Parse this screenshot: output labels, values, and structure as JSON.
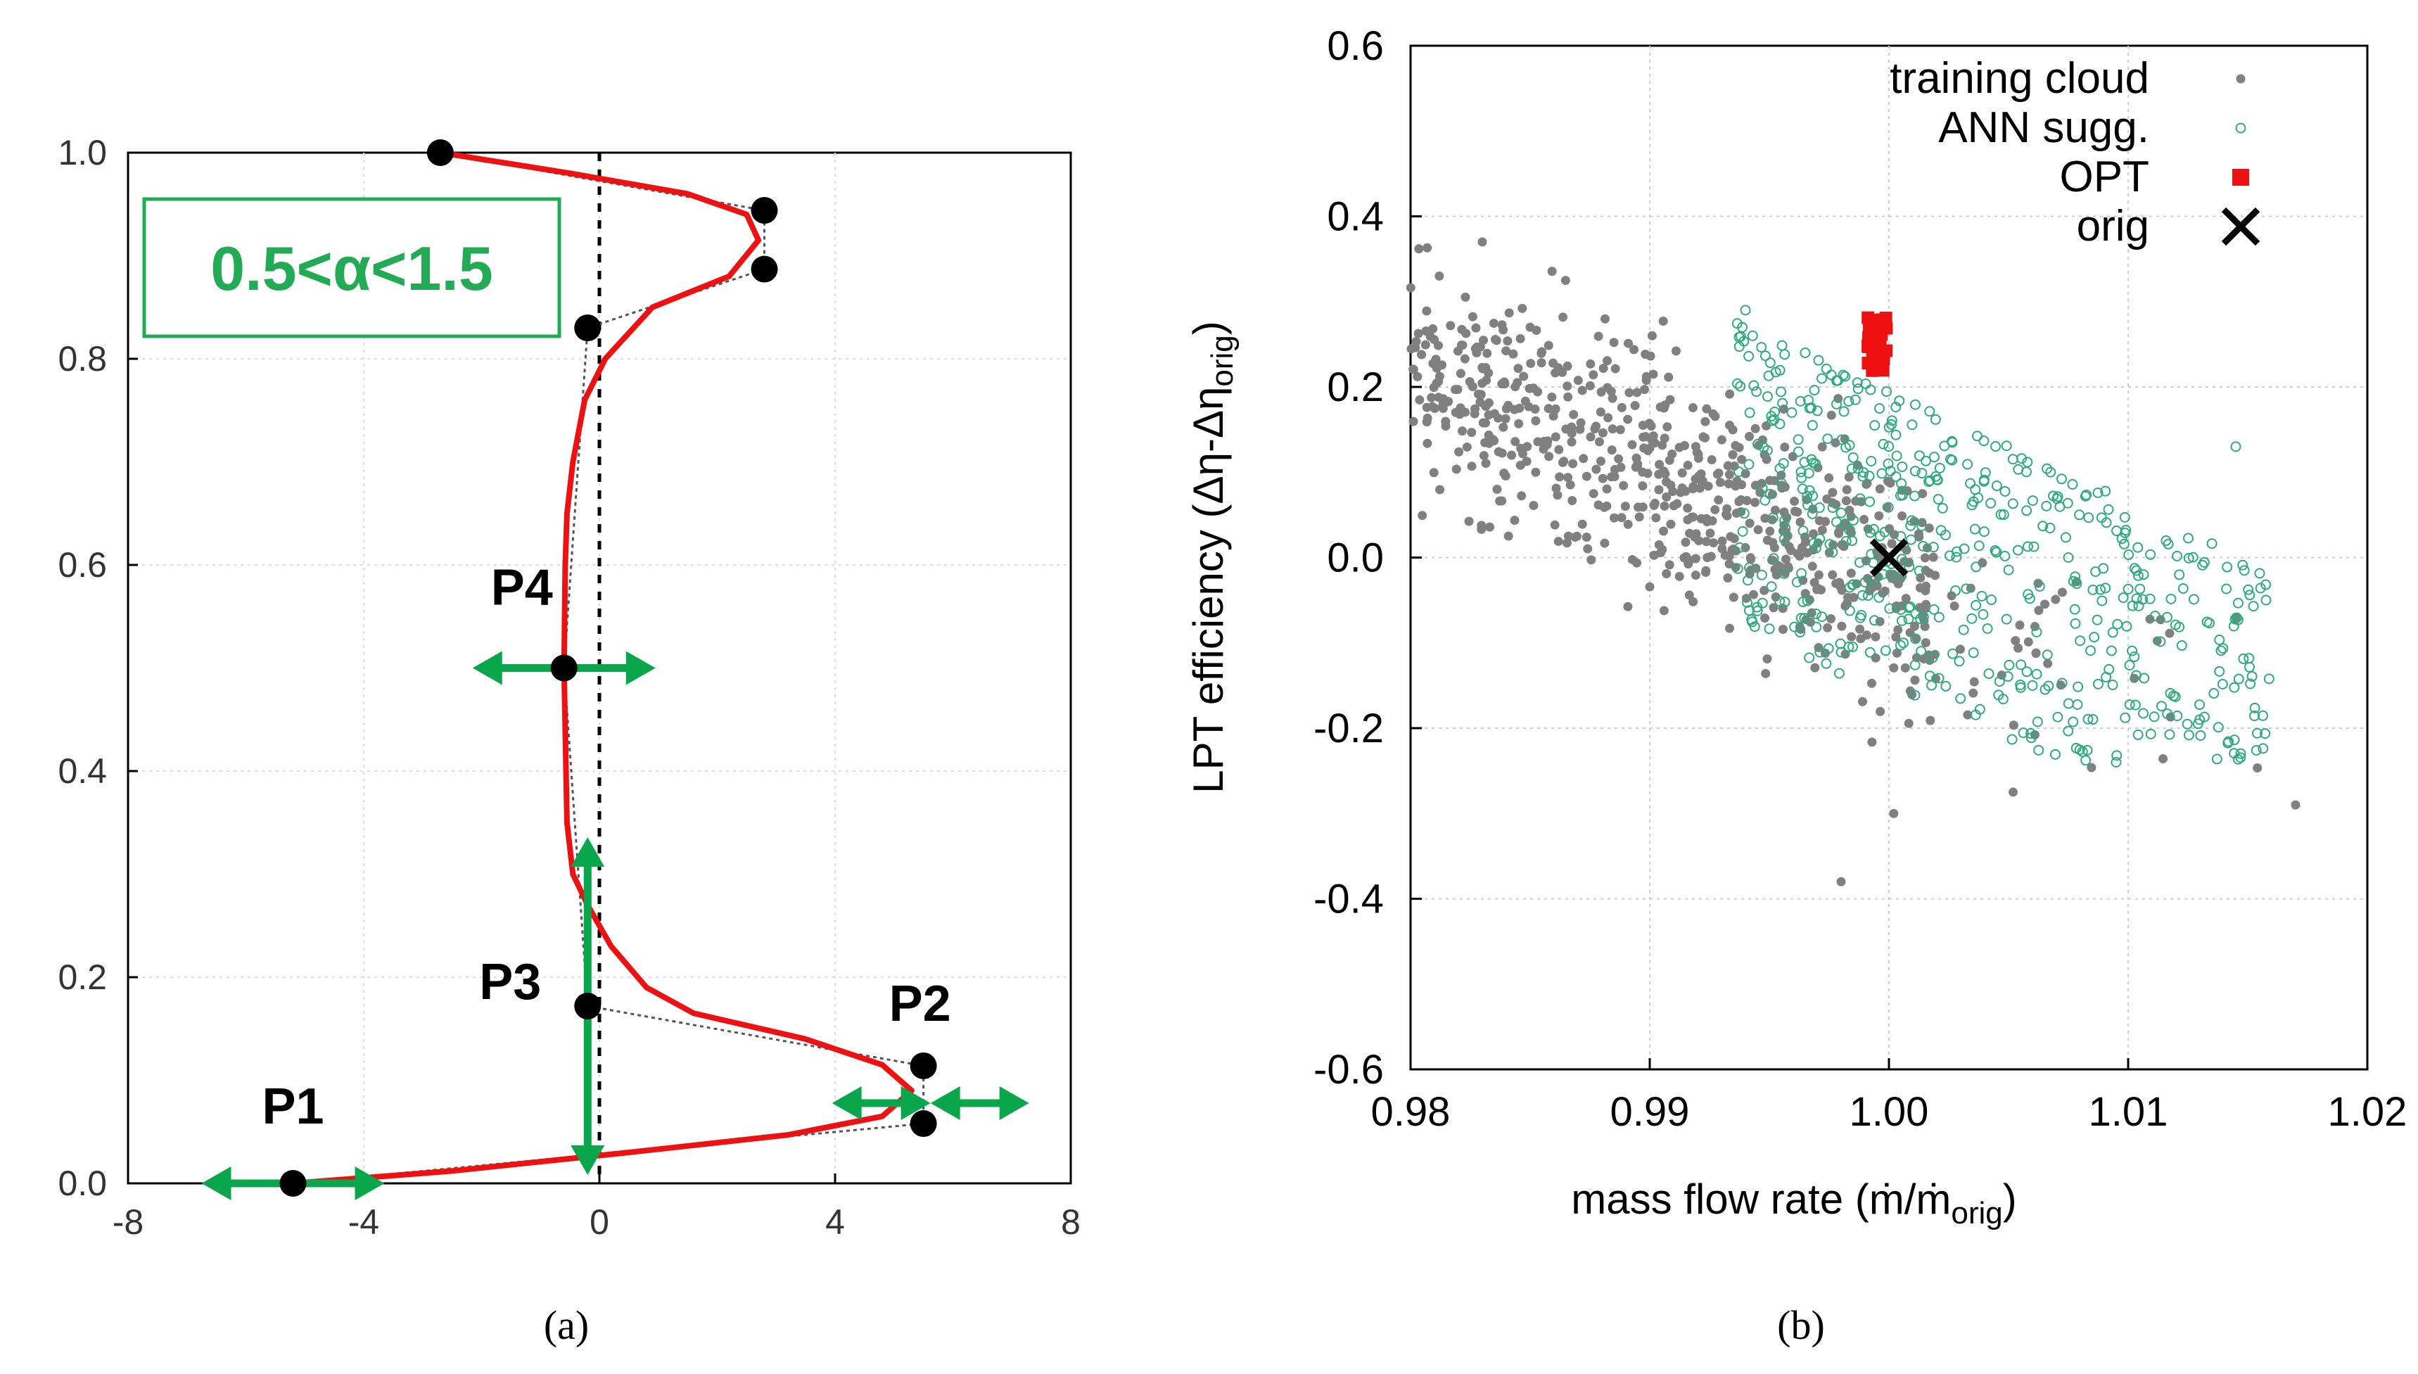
{
  "colors": {
    "curve": "#ee1111",
    "control": "#000000",
    "arrow": "#0aa64c",
    "alpha_box": "#22aa55",
    "cloud": "#808080",
    "ann": "#2eaa7e",
    "opt": "#ee1111",
    "orig": "#000000"
  },
  "chart_data": [
    {
      "panel": "a",
      "caption": "(a)",
      "type": "line",
      "annotation": "0.5<α<1.5",
      "xlim": [
        -8,
        8
      ],
      "ylim": [
        0,
        1
      ],
      "xticks": [
        "-8",
        "-4",
        "0",
        "4",
        "8"
      ],
      "yticks": [
        "0.0",
        "0.2",
        "0.4",
        "0.6",
        "0.8",
        "1.0"
      ],
      "zero_line_x": 0,
      "control_points": [
        {
          "x": -5.2,
          "y": 0.0
        },
        {
          "x": 5.5,
          "y": 0.058
        },
        {
          "x": 5.5,
          "y": 0.114
        },
        {
          "x": -0.2,
          "y": 0.172
        },
        {
          "x": -0.6,
          "y": 0.5
        },
        {
          "x": -0.2,
          "y": 0.83
        },
        {
          "x": 2.8,
          "y": 0.887
        },
        {
          "x": 2.8,
          "y": 0.944
        },
        {
          "x": -2.7,
          "y": 1.0
        }
      ],
      "curve": {
        "x": [
          -5.2,
          -2.5,
          0.5,
          3.2,
          4.8,
          5.3,
          4.8,
          3.5,
          1.6,
          0.8,
          0.2,
          -0.2,
          -0.45,
          -0.55,
          -0.6,
          -0.58,
          -0.55,
          -0.45,
          -0.25,
          0.1,
          0.9,
          2.2,
          2.7,
          2.5,
          1.5,
          -0.5,
          -2.7
        ],
        "y": [
          0.0,
          0.012,
          0.03,
          0.047,
          0.065,
          0.09,
          0.115,
          0.14,
          0.165,
          0.19,
          0.23,
          0.27,
          0.3,
          0.35,
          0.5,
          0.6,
          0.65,
          0.7,
          0.76,
          0.8,
          0.85,
          0.88,
          0.915,
          0.94,
          0.96,
          0.98,
          1.0
        ]
      },
      "point_labels": [
        {
          "text": "P1",
          "x": -5.2,
          "y": 0.0,
          "arrow": "horizontal"
        },
        {
          "text": "P2",
          "x": 5.5,
          "y": 0.086,
          "arrow": "horizontal"
        },
        {
          "text": "P3",
          "x": -0.2,
          "y": 0.172,
          "arrow": "vertical"
        },
        {
          "text": "P4",
          "x": -0.6,
          "y": 0.5,
          "arrow": "horizontal"
        }
      ]
    },
    {
      "panel": "b",
      "caption": "(b)",
      "type": "scatter",
      "xlabel": "mass flow rate (ṁ/ṁ",
      "xlabel_sub": "orig",
      "xlabel_tail": ")",
      "ylabel": "LPT efficiency (Δη-Δη",
      "ylabel_sub": "orig",
      "ylabel_tail": ")",
      "xlim": [
        0.98,
        1.02
      ],
      "ylim": [
        -0.6,
        0.6
      ],
      "xticks": [
        "0.98",
        "0.99",
        "1.00",
        "1.01",
        "1.02"
      ],
      "yticks": [
        "-0.6",
        "-0.4",
        "-0.2",
        "0.0",
        "0.2",
        "0.4",
        "0.6"
      ],
      "series": [
        {
          "name": "training cloud",
          "marker": "filled-circle",
          "count": 720,
          "sample_points": [
            [
              0.983,
              0.37
            ],
            [
              0.9812,
              0.33
            ],
            [
              0.985,
              0.27
            ],
            [
              0.998,
              -0.38
            ],
            [
              1.017,
              -0.29
            ],
            [
              1.0145,
              -0.07
            ],
            [
              1.0002,
              -0.3
            ],
            [
              0.9901,
              0.26
            ]
          ]
        },
        {
          "name": "ANN sugg.",
          "marker": "open-circle",
          "count": 560,
          "sample_points": [
            [
              0.994,
              0.29
            ],
            [
              1.0145,
              0.13
            ],
            [
              1.0095,
              -0.24
            ],
            [
              1.0075,
              0.0
            ],
            [
              0.9965,
              0.24
            ],
            [
              1.006,
              -0.15
            ]
          ]
        },
        {
          "name": "OPT",
          "marker": "filled-square",
          "count": 45,
          "sample_points": [
            [
              0.9994,
              0.275
            ],
            [
              0.9995,
              0.25
            ],
            [
              0.9997,
              0.225
            ]
          ]
        },
        {
          "name": "orig",
          "marker": "cross",
          "points": [
            [
              1.0,
              0.0
            ]
          ]
        }
      ],
      "legend": [
        "training cloud",
        "ANN sugg.",
        "OPT",
        "orig"
      ],
      "legend_position": "top-right"
    }
  ]
}
